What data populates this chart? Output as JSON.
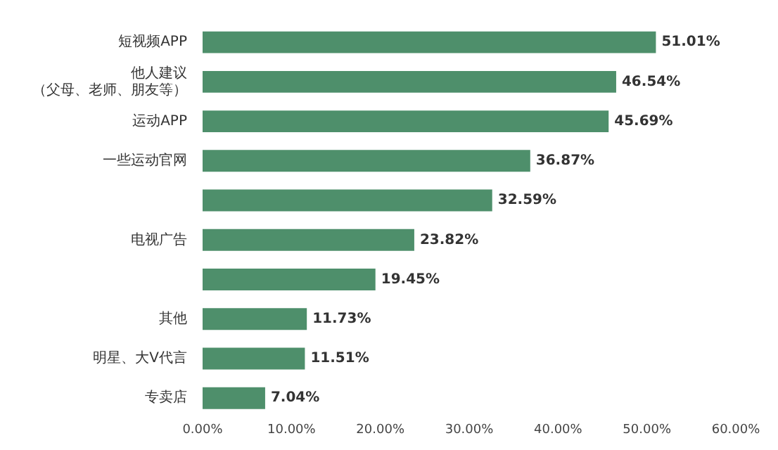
{
  "chart_data": {
    "type": "bar",
    "orientation": "horizontal",
    "categories": [
      "短视频APP",
      "他人建议（父母、老师、朋友等）",
      "运动APP",
      "一些运动官网",
      null,
      "电视广告",
      null,
      "其他",
      "明星、大V代言",
      "专卖店"
    ],
    "values": [
      51.01,
      46.54,
      45.69,
      36.87,
      32.59,
      23.82,
      19.45,
      11.73,
      11.51,
      7.04
    ],
    "value_labels": [
      "51.01%",
      "46.54%",
      "45.69%",
      "36.87%",
      "32.59%",
      "23.82%",
      "19.45%",
      "11.73%",
      "11.51%",
      "7.04%"
    ],
    "color": "#4e8f6b",
    "xlim": [
      0,
      60
    ],
    "xticks": [
      {
        "value": 0,
        "label": "0.00%"
      },
      {
        "value": 10,
        "label": "10.00%"
      },
      {
        "value": 20,
        "label": "20.00%"
      },
      {
        "value": 30,
        "label": "30.00%"
      },
      {
        "value": 40,
        "label": "40.00%"
      },
      {
        "value": 50,
        "label": "50.00%"
      },
      {
        "value": 60,
        "label": "60.00%"
      }
    ],
    "grid": false,
    "legend": false
  }
}
